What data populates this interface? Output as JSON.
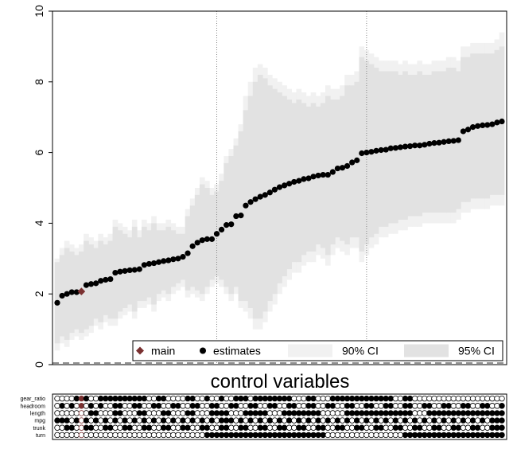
{
  "chart_data": {
    "type": "scatter",
    "title": "",
    "xlabel": "control variables",
    "ylabel": "",
    "ylim": [
      0,
      10
    ],
    "yticks": [
      "0",
      "2",
      "4",
      "6",
      "8",
      "10"
    ],
    "reference_lines": [
      {
        "kind": "vertical",
        "style": "dotted",
        "at_specification": 33
      },
      {
        "kind": "vertical",
        "style": "dotted",
        "at_specification": 64
      },
      {
        "kind": "horizontal",
        "style": "dashed",
        "at_value": 0
      }
    ],
    "legend": {
      "placement": "bottom-right",
      "entries": [
        {
          "label": "main",
          "marker": "diamond",
          "color": "#7a3030"
        },
        {
          "label": "estimates",
          "marker": "circle",
          "color": "#000000"
        },
        {
          "label": "90% CI",
          "marker": "band",
          "color": "#f1f1f1"
        },
        {
          "label": "95% CI",
          "marker": "band",
          "color": "#e2e2e2"
        }
      ]
    },
    "main_specification": 5,
    "estimates": [
      1.75,
      1.95,
      2.0,
      2.05,
      2.05,
      2.07,
      2.25,
      2.28,
      2.3,
      2.37,
      2.4,
      2.42,
      2.6,
      2.63,
      2.65,
      2.67,
      2.68,
      2.7,
      2.82,
      2.85,
      2.87,
      2.9,
      2.93,
      2.95,
      2.98,
      3.0,
      3.05,
      3.15,
      3.35,
      3.45,
      3.52,
      3.55,
      3.55,
      3.7,
      3.82,
      3.95,
      3.97,
      4.2,
      4.22,
      4.5,
      4.6,
      4.68,
      4.75,
      4.8,
      4.87,
      4.95,
      5.02,
      5.07,
      5.12,
      5.17,
      5.2,
      5.25,
      5.27,
      5.32,
      5.35,
      5.37,
      5.37,
      5.45,
      5.55,
      5.57,
      5.62,
      5.72,
      5.78,
      5.98,
      6.0,
      6.02,
      6.05,
      6.07,
      6.08,
      6.12,
      6.13,
      6.15,
      6.17,
      6.18,
      6.2,
      6.2,
      6.22,
      6.25,
      6.27,
      6.28,
      6.3,
      6.32,
      6.33,
      6.35,
      6.6,
      6.65,
      6.72,
      6.75,
      6.77,
      6.78,
      6.8,
      6.85,
      6.88
    ],
    "ci90": [
      [
        0.6,
        2.9
      ],
      [
        0.8,
        3.1
      ],
      [
        0.7,
        3.3
      ],
      [
        0.9,
        3.2
      ],
      [
        1.0,
        3.1
      ],
      [
        0.9,
        3.2
      ],
      [
        1.0,
        3.5
      ],
      [
        1.1,
        3.4
      ],
      [
        1.3,
        3.3
      ],
      [
        1.2,
        3.5
      ],
      [
        1.4,
        3.4
      ],
      [
        1.3,
        3.5
      ],
      [
        1.3,
        3.9
      ],
      [
        1.5,
        3.8
      ],
      [
        1.6,
        3.7
      ],
      [
        1.7,
        3.6
      ],
      [
        1.5,
        3.9
      ],
      [
        1.8,
        3.6
      ],
      [
        1.8,
        3.9
      ],
      [
        1.9,
        3.8
      ],
      [
        1.7,
        4.0
      ],
      [
        2.0,
        3.8
      ],
      [
        2.1,
        3.8
      ],
      [
        2.0,
        3.9
      ],
      [
        2.2,
        3.8
      ],
      [
        2.3,
        3.7
      ],
      [
        2.4,
        3.7
      ],
      [
        2.1,
        4.2
      ],
      [
        2.2,
        4.5
      ],
      [
        2.1,
        4.8
      ],
      [
        2.0,
        5.1
      ],
      [
        2.2,
        5.0
      ],
      [
        2.4,
        4.8
      ],
      [
        2.5,
        4.9
      ],
      [
        2.4,
        5.2
      ],
      [
        2.2,
        5.7
      ],
      [
        2.0,
        5.9
      ],
      [
        2.2,
        6.2
      ],
      [
        1.8,
        6.6
      ],
      [
        1.8,
        7.2
      ],
      [
        1.6,
        7.6
      ],
      [
        1.3,
        8.0
      ],
      [
        1.3,
        8.2
      ],
      [
        1.5,
        8.1
      ],
      [
        1.8,
        7.9
      ],
      [
        2.0,
        7.8
      ],
      [
        2.3,
        7.7
      ],
      [
        2.5,
        7.6
      ],
      [
        2.7,
        7.5
      ],
      [
        2.9,
        7.4
      ],
      [
        2.9,
        7.5
      ],
      [
        3.1,
        7.4
      ],
      [
        3.2,
        7.3
      ],
      [
        3.2,
        7.4
      ],
      [
        3.4,
        7.3
      ],
      [
        3.3,
        7.4
      ],
      [
        3.1,
        7.6
      ],
      [
        3.4,
        7.5
      ],
      [
        3.6,
        7.5
      ],
      [
        3.5,
        7.6
      ],
      [
        3.4,
        7.9
      ],
      [
        3.6,
        7.9
      ],
      [
        3.6,
        8.0
      ],
      [
        3.2,
        8.7
      ],
      [
        3.4,
        8.6
      ],
      [
        3.6,
        8.5
      ],
      [
        3.7,
        8.4
      ],
      [
        3.9,
        8.3
      ],
      [
        3.9,
        8.3
      ],
      [
        4.0,
        8.3
      ],
      [
        4.0,
        8.3
      ],
      [
        4.1,
        8.2
      ],
      [
        4.1,
        8.3
      ],
      [
        4.2,
        8.2
      ],
      [
        4.2,
        8.2
      ],
      [
        4.2,
        8.3
      ],
      [
        4.3,
        8.2
      ],
      [
        4.3,
        8.2
      ],
      [
        4.3,
        8.3
      ],
      [
        4.3,
        8.3
      ],
      [
        4.3,
        8.3
      ],
      [
        4.3,
        8.4
      ],
      [
        4.3,
        8.4
      ],
      [
        4.4,
        8.3
      ],
      [
        4.6,
        8.7
      ],
      [
        4.6,
        8.7
      ],
      [
        4.7,
        8.8
      ],
      [
        4.7,
        8.8
      ],
      [
        4.7,
        8.8
      ],
      [
        4.7,
        8.8
      ],
      [
        4.8,
        8.8
      ],
      [
        4.8,
        8.9
      ],
      [
        4.8,
        9.0
      ]
    ],
    "ci95": [
      [
        0.4,
        3.0
      ],
      [
        0.6,
        3.3
      ],
      [
        0.5,
        3.5
      ],
      [
        0.7,
        3.4
      ],
      [
        0.8,
        3.3
      ],
      [
        0.7,
        3.4
      ],
      [
        0.8,
        3.7
      ],
      [
        0.9,
        3.6
      ],
      [
        1.1,
        3.5
      ],
      [
        1.0,
        3.7
      ],
      [
        1.2,
        3.6
      ],
      [
        1.1,
        3.7
      ],
      [
        1.1,
        4.1
      ],
      [
        1.3,
        4.0
      ],
      [
        1.4,
        3.9
      ],
      [
        1.5,
        3.8
      ],
      [
        1.3,
        4.1
      ],
      [
        1.6,
        3.8
      ],
      [
        1.6,
        4.1
      ],
      [
        1.7,
        4.0
      ],
      [
        1.5,
        4.2
      ],
      [
        1.8,
        4.0
      ],
      [
        1.9,
        4.0
      ],
      [
        1.8,
        4.1
      ],
      [
        2.0,
        4.0
      ],
      [
        2.1,
        3.9
      ],
      [
        2.2,
        3.9
      ],
      [
        1.9,
        4.4
      ],
      [
        2.0,
        4.7
      ],
      [
        1.9,
        5.0
      ],
      [
        1.8,
        5.3
      ],
      [
        2.0,
        5.2
      ],
      [
        2.2,
        5.0
      ],
      [
        2.3,
        5.1
      ],
      [
        2.2,
        5.4
      ],
      [
        2.0,
        5.9
      ],
      [
        1.8,
        6.1
      ],
      [
        2.0,
        6.4
      ],
      [
        1.6,
        6.8
      ],
      [
        1.5,
        7.6
      ],
      [
        1.3,
        8.0
      ],
      [
        1.0,
        8.4
      ],
      [
        1.0,
        8.5
      ],
      [
        1.2,
        8.4
      ],
      [
        1.5,
        8.2
      ],
      [
        1.7,
        8.1
      ],
      [
        2.0,
        8.0
      ],
      [
        2.2,
        7.9
      ],
      [
        2.4,
        7.8
      ],
      [
        2.6,
        7.7
      ],
      [
        2.6,
        7.8
      ],
      [
        2.8,
        7.7
      ],
      [
        2.9,
        7.6
      ],
      [
        2.9,
        7.7
      ],
      [
        3.1,
        7.6
      ],
      [
        3.0,
        7.7
      ],
      [
        2.8,
        7.9
      ],
      [
        3.1,
        7.8
      ],
      [
        3.3,
        7.8
      ],
      [
        3.2,
        7.9
      ],
      [
        3.1,
        8.2
      ],
      [
        3.3,
        8.2
      ],
      [
        3.3,
        8.3
      ],
      [
        2.9,
        9.0
      ],
      [
        3.1,
        8.9
      ],
      [
        3.3,
        8.8
      ],
      [
        3.4,
        8.7
      ],
      [
        3.6,
        8.6
      ],
      [
        3.6,
        8.6
      ],
      [
        3.7,
        8.6
      ],
      [
        3.7,
        8.6
      ],
      [
        3.8,
        8.5
      ],
      [
        3.8,
        8.6
      ],
      [
        3.9,
        8.5
      ],
      [
        3.9,
        8.5
      ],
      [
        3.9,
        8.6
      ],
      [
        4.0,
        8.5
      ],
      [
        4.0,
        8.5
      ],
      [
        4.0,
        8.6
      ],
      [
        4.0,
        8.6
      ],
      [
        4.0,
        8.6
      ],
      [
        4.0,
        8.7
      ],
      [
        4.0,
        8.7
      ],
      [
        4.1,
        8.6
      ],
      [
        4.3,
        9.0
      ],
      [
        4.3,
        9.0
      ],
      [
        4.4,
        9.1
      ],
      [
        4.4,
        9.1
      ],
      [
        4.4,
        9.1
      ],
      [
        4.4,
        9.1
      ],
      [
        4.5,
        9.1
      ],
      [
        4.5,
        9.2
      ],
      [
        4.5,
        9.4
      ]
    ],
    "control_variables": [
      "gear_ratio",
      "headroom",
      "length",
      "mpg",
      "trunk",
      "turn"
    ],
    "indicators": {
      "gear_ratio": "000011100111111111100110000110010010011101111111100011000111111111111100110000000000000000000",
      "headroom": "010101010100110011001100110011001100110011001100110011001100110011001100110011001100110011001",
      "length": "000000011000110001100011000110001111000111110001111111100000111111111111110001111111111111111",
      "mpg": "111010101010101010101010101010101011101010101010101010101010101010101010101010101010101010111",
      "trunk": "001100110011001100110011001100110011001100110011001100110011001100110011001100110011001100111",
      "turn": "000000000000000000000000000000011111111111111111111111110000000000000000111111111111111111111"
    }
  }
}
